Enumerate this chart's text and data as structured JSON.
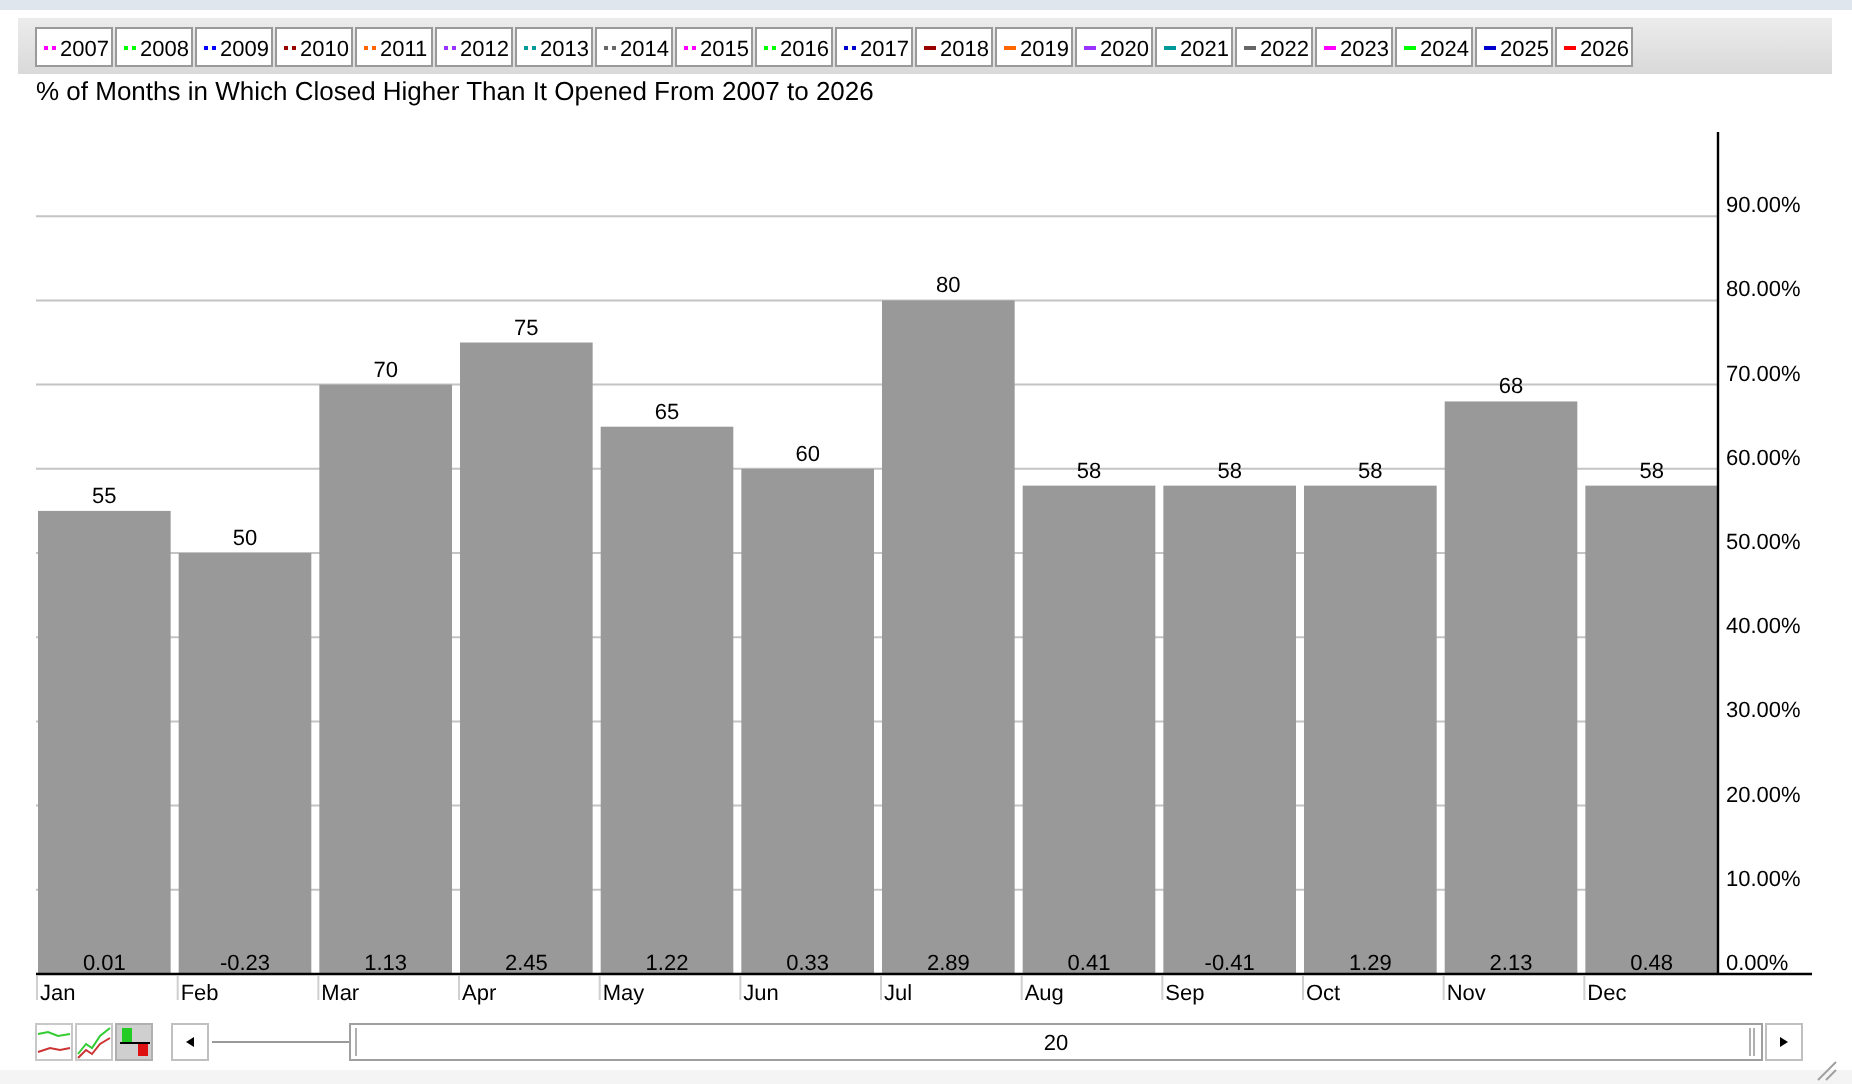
{
  "chart_data": {
    "type": "bar",
    "title": "% of Months in Which Closed Higher Than It Opened From 2007 to 2026",
    "categories": [
      "Jan",
      "Feb",
      "Mar",
      "Apr",
      "May",
      "Jun",
      "Jul",
      "Aug",
      "Sep",
      "Oct",
      "Nov",
      "Dec"
    ],
    "series": [
      {
        "color": "#999999",
        "values": [
          55,
          50,
          70,
          75,
          65,
          60,
          80,
          58,
          58,
          58,
          68,
          58
        ]
      },
      {
        "name": "2007",
        "type": "line",
        "color": "#ff00ff",
        "line_style": "dotted",
        "values": [
          null,
          null,
          null,
          null,
          null,
          null,
          null,
          null,
          null,
          null,
          null,
          null
        ]
      },
      {
        "name": "2008",
        "type": "line",
        "color": "#00ff00",
        "line_style": "dotted",
        "values": [
          null,
          null,
          null,
          null,
          null,
          null,
          null,
          null,
          null,
          null,
          null,
          null
        ]
      },
      {
        "name": "2009",
        "type": "line",
        "color": "#0000ff",
        "line_style": "dotted",
        "values": [
          null,
          null,
          null,
          null,
          null,
          null,
          null,
          null,
          null,
          null,
          null,
          null
        ]
      },
      {
        "name": "2010",
        "type": "line",
        "color": "#990000",
        "line_style": "dotted",
        "values": [
          null,
          null,
          null,
          null,
          null,
          null,
          null,
          null,
          null,
          null,
          null,
          null
        ]
      },
      {
        "name": "2011",
        "type": "line",
        "color": "#ff6600",
        "line_style": "dotted",
        "values": [
          null,
          null,
          null,
          null,
          null,
          null,
          null,
          null,
          null,
          null,
          null,
          null
        ]
      },
      {
        "name": "2012",
        "type": "line",
        "color": "#9933ff",
        "line_style": "dotted",
        "values": [
          null,
          null,
          null,
          null,
          null,
          null,
          null,
          null,
          null,
          null,
          null,
          null
        ]
      },
      {
        "name": "2013",
        "type": "line",
        "color": "#009999",
        "line_style": "dotted",
        "values": [
          null,
          null,
          null,
          null,
          null,
          null,
          null,
          null,
          null,
          null,
          null,
          null
        ]
      },
      {
        "name": "2014",
        "type": "line",
        "color": "#666666",
        "line_style": "dotted",
        "values": [
          null,
          null,
          null,
          null,
          null,
          null,
          null,
          null,
          null,
          null,
          null,
          null
        ]
      },
      {
        "name": "2015",
        "type": "line",
        "color": "#ff00ff",
        "line_style": "dotted",
        "values": [
          null,
          null,
          null,
          null,
          null,
          null,
          null,
          null,
          null,
          null,
          null,
          null
        ]
      },
      {
        "name": "2016",
        "type": "line",
        "color": "#00ff00",
        "line_style": "dotted",
        "values": [
          null,
          null,
          null,
          null,
          null,
          null,
          null,
          null,
          null,
          null,
          null,
          null
        ]
      },
      {
        "name": "2017",
        "type": "line",
        "color": "#0000cc",
        "line_style": "dotted",
        "values": [
          null,
          null,
          null,
          null,
          null,
          null,
          null,
          null,
          null,
          null,
          null,
          null
        ]
      },
      {
        "name": "2018",
        "type": "line",
        "color": "#990000",
        "line_style": "solid",
        "values": [
          null,
          null,
          null,
          null,
          null,
          null,
          null,
          null,
          null,
          null,
          null,
          null
        ]
      },
      {
        "name": "2019",
        "type": "line",
        "color": "#ff6600",
        "line_style": "solid",
        "values": [
          null,
          null,
          null,
          null,
          null,
          null,
          null,
          null,
          null,
          null,
          null,
          null
        ]
      },
      {
        "name": "2020",
        "type": "line",
        "color": "#9933ff",
        "line_style": "solid",
        "values": [
          null,
          null,
          null,
          null,
          null,
          null,
          null,
          null,
          null,
          null,
          null,
          null
        ]
      },
      {
        "name": "2021",
        "type": "line",
        "color": "#009999",
        "line_style": "solid",
        "values": [
          null,
          null,
          null,
          null,
          null,
          null,
          null,
          null,
          null,
          null,
          null,
          null
        ]
      },
      {
        "name": "2022",
        "type": "line",
        "color": "#666666",
        "line_style": "solid",
        "values": [
          null,
          null,
          null,
          null,
          null,
          null,
          null,
          null,
          null,
          null,
          null,
          null
        ]
      },
      {
        "name": "2023",
        "type": "line",
        "color": "#ff00ff",
        "line_style": "solid",
        "values": [
          null,
          null,
          null,
          null,
          null,
          null,
          null,
          null,
          null,
          null,
          null,
          null
        ]
      },
      {
        "name": "2024",
        "type": "line",
        "color": "#00ff00",
        "line_style": "solid",
        "values": [
          null,
          null,
          null,
          null,
          null,
          null,
          null,
          null,
          null,
          null,
          null,
          null
        ]
      },
      {
        "name": "2025",
        "type": "line",
        "color": "#0000cc",
        "line_style": "solid",
        "values": [
          null,
          null,
          null,
          null,
          null,
          null,
          null,
          null,
          null,
          null,
          null,
          null
        ]
      },
      {
        "name": "2026",
        "type": "line",
        "color": "#ff0000",
        "line_style": "solid",
        "values": [
          null,
          null,
          null,
          null,
          null,
          null,
          null,
          null,
          null,
          null,
          null,
          null
        ]
      }
    ],
    "ylim": [
      0,
      100
    ],
    "yticks": [
      {
        "value": 0,
        "label": "0.00%"
      },
      {
        "value": 10,
        "label": "10.00%"
      },
      {
        "value": 20,
        "label": "20.00%"
      },
      {
        "value": 30,
        "label": "30.00%"
      },
      {
        "value": 40,
        "label": "40.00%"
      },
      {
        "value": 50,
        "label": "50.00%"
      },
      {
        "value": 60,
        "label": "60.00%"
      },
      {
        "value": 70,
        "label": "70.00%"
      },
      {
        "value": 80,
        "label": "80.00%"
      },
      {
        "value": 90,
        "label": "90.00%"
      }
    ],
    "grid": "y",
    "legend": "top",
    "data_labels": true,
    "annotations": [
      {
        "text": "0.01",
        "x": "Jan",
        "y": 0
      },
      {
        "text": "-0.23",
        "x": "Feb",
        "y": 0
      },
      {
        "text": "1.13",
        "x": "Mar",
        "y": 0
      },
      {
        "text": "2.45",
        "x": "Apr",
        "y": 0
      },
      {
        "text": "1.22",
        "x": "May",
        "y": 0
      },
      {
        "text": "0.33",
        "x": "Jun",
        "y": 0
      },
      {
        "text": "2.89",
        "x": "Jul",
        "y": 0
      },
      {
        "text": "0.41",
        "x": "Aug",
        "y": 0
      },
      {
        "text": "-0.41",
        "x": "Sep",
        "y": 0
      },
      {
        "text": "1.29",
        "x": "Oct",
        "y": 0
      },
      {
        "text": "2.13",
        "x": "Nov",
        "y": 0
      },
      {
        "text": "0.48",
        "x": "Dec",
        "y": 0
      },
      "20"
    ]
  }
}
